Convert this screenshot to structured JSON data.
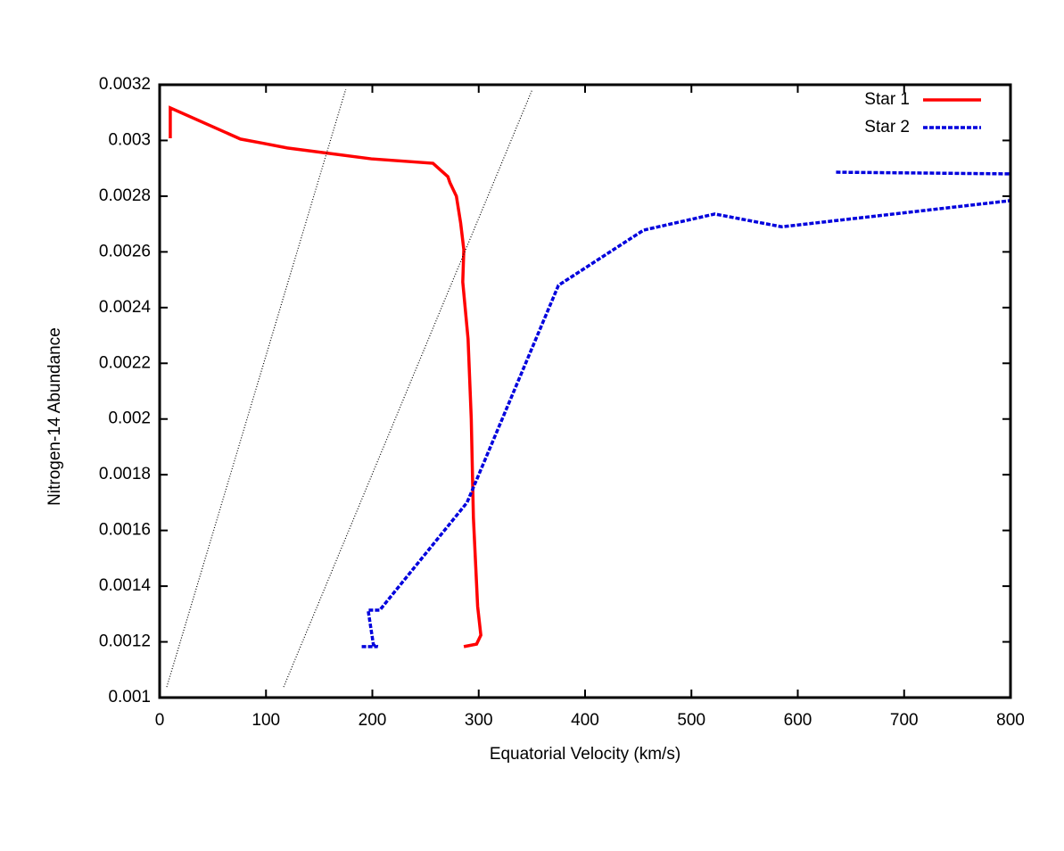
{
  "chart_data": {
    "type": "line",
    "xlabel": "Equatorial Velocity (km/s)",
    "ylabel": "Nitrogen-14 Abundance",
    "xlim": [
      0,
      800
    ],
    "xticks": [
      0,
      100,
      200,
      300,
      400,
      500,
      600,
      700,
      800
    ],
    "ylim": [
      0.001,
      0.0032
    ],
    "yticks": [
      0.001,
      0.0012,
      0.0014,
      0.0016,
      0.0018,
      0.002,
      0.0022,
      0.0024,
      0.0026,
      0.0028,
      0.003,
      0.0032
    ],
    "legend": "top-right",
    "series": [
      {
        "name": "Star 1",
        "color": "#ff0000",
        "style": "solid",
        "x": [
          10,
          10,
          76,
          97,
          120,
          199,
          257,
          271,
          273,
          279,
          283,
          286,
          285,
          290,
          293,
          295,
          299,
          302,
          298,
          286
        ],
        "values": [
          0.003008,
          0.003117,
          0.003005,
          0.00299,
          0.002973,
          0.002934,
          0.002918,
          0.00287,
          0.002848,
          0.0028,
          0.002704,
          0.002608,
          0.002492,
          0.002287,
          0.002,
          0.001647,
          0.001327,
          0.001224,
          0.001192,
          0.001183
        ]
      },
      {
        "name": "Star 2",
        "color": "#0000dd",
        "style": "dashed",
        "x": [
          190,
          205,
          201,
          196,
          207,
          289,
          375,
          455,
          522,
          585,
          800,
          null,
          636,
          800
        ],
        "values": [
          0.001183,
          0.001183,
          0.00119,
          0.001314,
          0.001314,
          0.0017,
          0.00248,
          0.002678,
          0.002736,
          0.00269,
          0.002784,
          null,
          0.002886,
          0.00288
        ]
      },
      {
        "color": "#000000",
        "style": "dotted",
        "x": [
          6.7,
          175
        ],
        "values": [
          0.001038,
          0.003184
        ]
      },
      {
        "color": "#000000",
        "style": "dotted",
        "x": [
          116.6,
          350.5
        ],
        "values": [
          0.001038,
          0.003184
        ]
      }
    ]
  }
}
